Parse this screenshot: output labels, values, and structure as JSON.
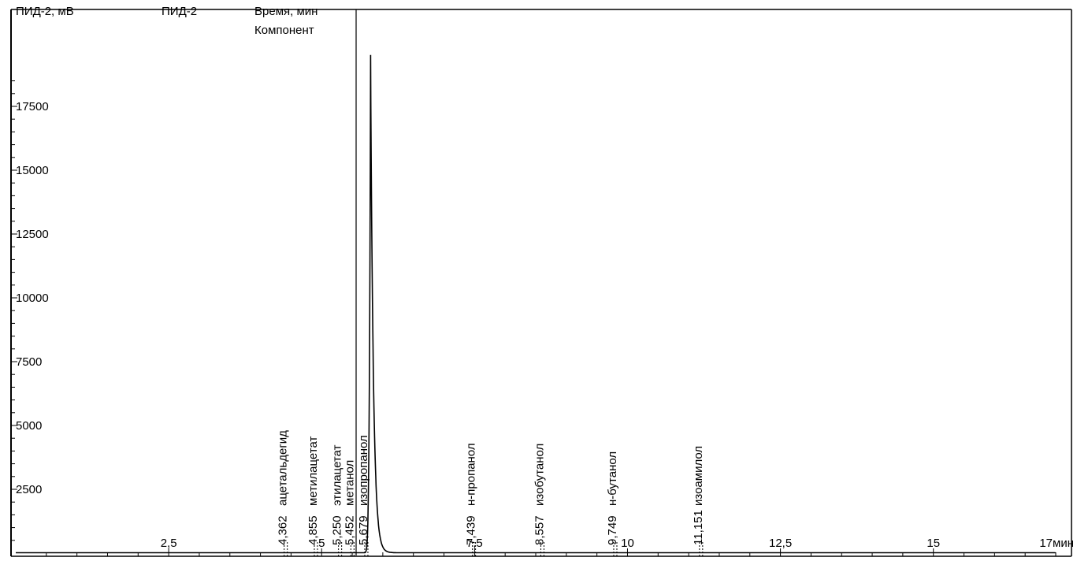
{
  "chart_data": {
    "type": "line",
    "header": {
      "ylabel": "ПИД-2, мВ",
      "channel": "ПИД-2",
      "time_label": "Время, мин",
      "component_label": "Компонент"
    },
    "x_unit": "мин",
    "xlim": [
      0,
      17
    ],
    "ylim": [
      0,
      19500
    ],
    "x_ticks": [
      {
        "value": 2.5,
        "label": "2,5"
      },
      {
        "value": 5,
        "label": "5"
      },
      {
        "value": 7.5,
        "label": "7,5"
      },
      {
        "value": 10,
        "label": "10"
      },
      {
        "value": 12.5,
        "label": "12,5"
      },
      {
        "value": 15,
        "label": "15"
      },
      {
        "value": 17,
        "label": "17мин"
      }
    ],
    "y_ticks": [
      {
        "value": 2500,
        "label": "2500"
      },
      {
        "value": 5000,
        "label": "5000"
      },
      {
        "value": 7500,
        "label": "7500"
      },
      {
        "value": 10000,
        "label": "10000"
      },
      {
        "value": 12500,
        "label": "12500"
      },
      {
        "value": 15000,
        "label": "15000"
      },
      {
        "value": 17500,
        "label": "17500"
      }
    ],
    "peaks": [
      {
        "time": 4.362,
        "time_label": "4,362",
        "component": "ацетальдегид"
      },
      {
        "time": 4.855,
        "time_label": "4,855",
        "component": "метилацетат"
      },
      {
        "time": 5.25,
        "time_label": "5,250",
        "component": "этилацетат"
      },
      {
        "time": 5.452,
        "time_label": "5,452",
        "component": "метанол"
      },
      {
        "time": 5.679,
        "time_label": "5,679",
        "component": "изопропанол"
      },
      {
        "time": 7.439,
        "time_label": "7,439",
        "component": "н-пропанол"
      },
      {
        "time": 8.557,
        "time_label": "8,557",
        "component": "изобутанол"
      },
      {
        "time": 9.749,
        "time_label": "9,749",
        "component": "н-бутанол"
      },
      {
        "time": 11.151,
        "time_label": "11,151",
        "component": "изоамилол"
      }
    ],
    "main_peak": {
      "time": 5.8,
      "height": 19500
    },
    "grid": false
  }
}
